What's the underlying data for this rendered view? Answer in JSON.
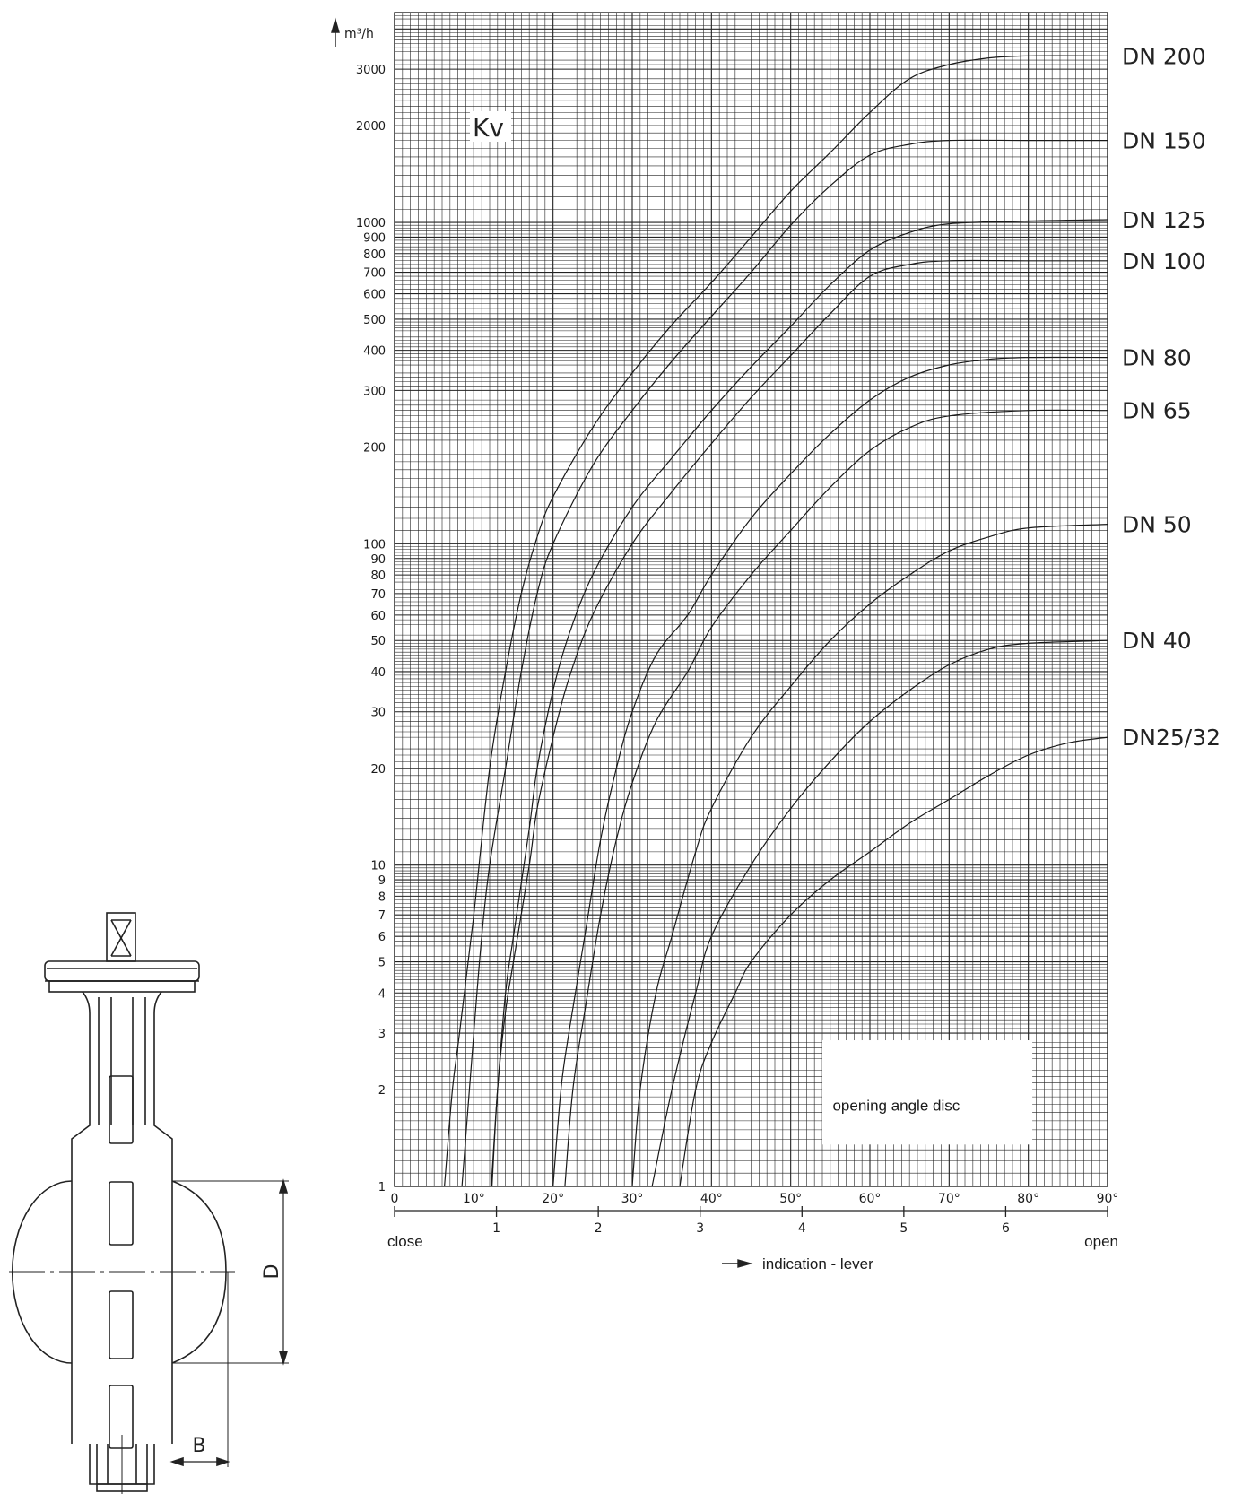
{
  "chart_data": {
    "type": "line",
    "y_unit": "m³/h",
    "y_symbol": "Kv",
    "y_scale": "log",
    "ylim": [
      1,
      4500
    ],
    "y_tick_labels": [
      "1",
      "2",
      "3",
      "4",
      "5",
      "6",
      "7",
      "8",
      "9",
      "10",
      "20",
      "30",
      "40",
      "50",
      "60",
      "70",
      "80",
      "90",
      "100",
      "200",
      "300",
      "400",
      "500",
      "600",
      "700",
      "800",
      "900",
      "1000",
      "2000",
      "3000"
    ],
    "x_angle_ticks": [
      "0",
      "10°",
      "20°",
      "30°",
      "40°",
      "50°",
      "60°",
      "70°",
      "80°",
      "90°"
    ],
    "x_lever_ticks": [
      "1",
      "2",
      "3",
      "4",
      "5",
      "6"
    ],
    "x_label_close": "close",
    "x_label_open": "open",
    "x_caption": "indication - lever",
    "inset_label": "opening angle disc",
    "xlim": [
      0,
      90
    ],
    "x_unit": "degrees",
    "series": [
      {
        "name": "DN 200",
        "points": [
          [
            6.3,
            1
          ],
          [
            7.3,
            2
          ],
          [
            8.2,
            3
          ],
          [
            10,
            7
          ],
          [
            12,
            20
          ],
          [
            14,
            40
          ],
          [
            16,
            70
          ],
          [
            18,
            105
          ],
          [
            20,
            140
          ],
          [
            25,
            230
          ],
          [
            30,
            340
          ],
          [
            35,
            480
          ],
          [
            40,
            650
          ],
          [
            45,
            900
          ],
          [
            50,
            1250
          ],
          [
            55,
            1650
          ],
          [
            60,
            2200
          ],
          [
            65,
            2800
          ],
          [
            70,
            3100
          ],
          [
            75,
            3250
          ],
          [
            80,
            3300
          ],
          [
            90,
            3300
          ]
        ]
      },
      {
        "name": "DN 150",
        "points": [
          [
            8.5,
            1
          ],
          [
            10,
            3
          ],
          [
            11,
            6
          ],
          [
            12,
            10
          ],
          [
            14,
            20
          ],
          [
            16,
            40
          ],
          [
            18,
            70
          ],
          [
            20,
            100
          ],
          [
            25,
            175
          ],
          [
            30,
            260
          ],
          [
            35,
            370
          ],
          [
            40,
            510
          ],
          [
            45,
            700
          ],
          [
            50,
            980
          ],
          [
            55,
            1300
          ],
          [
            60,
            1620
          ],
          [
            65,
            1750
          ],
          [
            70,
            1800
          ],
          [
            80,
            1800
          ],
          [
            90,
            1800
          ]
        ]
      },
      {
        "name": "DN 125",
        "points": [
          [
            12.2,
            1
          ],
          [
            13,
            2
          ],
          [
            14,
            4
          ],
          [
            15,
            6
          ],
          [
            17,
            13
          ],
          [
            18,
            20
          ],
          [
            20,
            35
          ],
          [
            22,
            52
          ],
          [
            25,
            80
          ],
          [
            30,
            130
          ],
          [
            35,
            185
          ],
          [
            40,
            260
          ],
          [
            45,
            355
          ],
          [
            50,
            475
          ],
          [
            55,
            640
          ],
          [
            60,
            820
          ],
          [
            65,
            930
          ],
          [
            70,
            990
          ],
          [
            80,
            1010
          ],
          [
            90,
            1020
          ]
        ]
      },
      {
        "name": "DN 100",
        "points": [
          [
            12.3,
            1
          ],
          [
            13,
            2
          ],
          [
            14,
            3.5
          ],
          [
            15,
            5
          ],
          [
            17,
            10
          ],
          [
            18,
            15
          ],
          [
            20,
            25
          ],
          [
            22,
            38
          ],
          [
            25,
            60
          ],
          [
            30,
            100
          ],
          [
            35,
            145
          ],
          [
            40,
            205
          ],
          [
            45,
            285
          ],
          [
            50,
            385
          ],
          [
            55,
            520
          ],
          [
            60,
            680
          ],
          [
            65,
            740
          ],
          [
            70,
            760
          ],
          [
            80,
            760
          ],
          [
            90,
            760
          ]
        ]
      },
      {
        "name": "DN 80",
        "points": [
          [
            20,
            1
          ],
          [
            21,
            2
          ],
          [
            22,
            3
          ],
          [
            24,
            6
          ],
          [
            26,
            12
          ],
          [
            28,
            20
          ],
          [
            30,
            30
          ],
          [
            33,
            45
          ],
          [
            37,
            60
          ],
          [
            40,
            80
          ],
          [
            45,
            120
          ],
          [
            50,
            165
          ],
          [
            55,
            220
          ],
          [
            60,
            280
          ],
          [
            65,
            330
          ],
          [
            70,
            360
          ],
          [
            75,
            375
          ],
          [
            80,
            380
          ],
          [
            90,
            380
          ]
        ]
      },
      {
        "name": "DN 65",
        "points": [
          [
            21.5,
            1
          ],
          [
            22.5,
            2
          ],
          [
            24,
            3.5
          ],
          [
            26,
            7
          ],
          [
            28,
            12
          ],
          [
            30,
            18
          ],
          [
            33,
            28
          ],
          [
            37,
            40
          ],
          [
            40,
            55
          ],
          [
            45,
            80
          ],
          [
            50,
            110
          ],
          [
            55,
            150
          ],
          [
            60,
            195
          ],
          [
            65,
            230
          ],
          [
            70,
            250
          ],
          [
            80,
            260
          ],
          [
            90,
            260
          ]
        ]
      },
      {
        "name": "DN 50",
        "points": [
          [
            30,
            1
          ],
          [
            31,
            2
          ],
          [
            33,
            4
          ],
          [
            35,
            6
          ],
          [
            38,
            11
          ],
          [
            40,
            15
          ],
          [
            45,
            25
          ],
          [
            50,
            36
          ],
          [
            55,
            50
          ],
          [
            60,
            65
          ],
          [
            65,
            80
          ],
          [
            70,
            95
          ],
          [
            75,
            105
          ],
          [
            80,
            112
          ],
          [
            90,
            115
          ]
        ]
      },
      {
        "name": "DN 40",
        "points": [
          [
            32.5,
            1
          ],
          [
            35,
            2
          ],
          [
            38,
            4
          ],
          [
            40,
            6
          ],
          [
            45,
            10
          ],
          [
            50,
            15
          ],
          [
            55,
            21
          ],
          [
            60,
            28
          ],
          [
            65,
            35
          ],
          [
            70,
            42
          ],
          [
            75,
            47
          ],
          [
            80,
            49
          ],
          [
            90,
            50
          ]
        ]
      },
      {
        "name": "DN25/32",
        "points": [
          [
            36,
            1
          ],
          [
            38,
            2
          ],
          [
            40,
            2.8
          ],
          [
            43,
            4
          ],
          [
            45,
            5
          ],
          [
            50,
            7
          ],
          [
            55,
            9
          ],
          [
            60,
            11
          ],
          [
            65,
            13.5
          ],
          [
            70,
            16
          ],
          [
            75,
            19
          ],
          [
            80,
            22
          ],
          [
            85,
            24
          ],
          [
            90,
            25
          ]
        ]
      }
    ]
  },
  "drawing": {
    "dimension_b": "B",
    "dimension_d": "D"
  }
}
